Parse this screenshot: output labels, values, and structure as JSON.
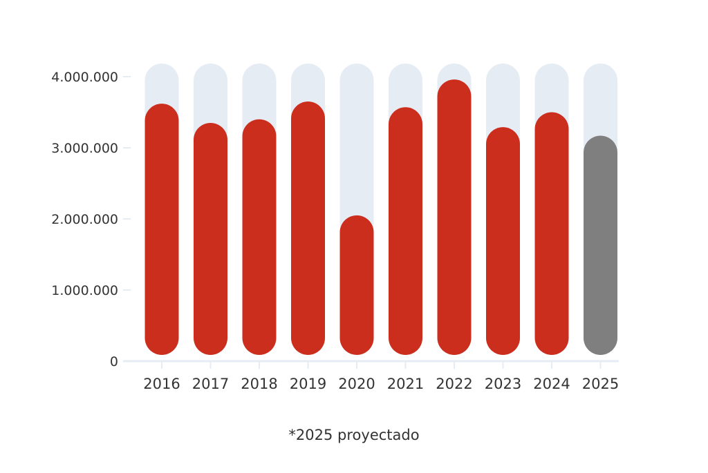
{
  "chart_data": {
    "type": "bar",
    "title": "",
    "xlabel": "",
    "ylabel": "",
    "categories": [
      "2016",
      "2017",
      "2018",
      "2019",
      "2020",
      "2021",
      "2022",
      "2023",
      "2024",
      "2025"
    ],
    "values": [
      3620000,
      3350000,
      3400000,
      3650000,
      2050000,
      3570000,
      3960000,
      3290000,
      3500000,
      3170000
    ],
    "projected": [
      false,
      false,
      false,
      false,
      false,
      false,
      false,
      false,
      false,
      true
    ],
    "ylim": [
      0,
      4000000
    ],
    "yticks": [
      {
        "value": 0,
        "label": "0"
      },
      {
        "value": 1000000,
        "label": "1.000.000"
      },
      {
        "value": 2000000,
        "label": "2.000.000"
      },
      {
        "value": 3000000,
        "label": "3.000.000"
      },
      {
        "value": 4000000,
        "label": "4.000.000"
      }
    ],
    "grid": false,
    "colors": {
      "bar": "#cc2e1e",
      "projected_bar": "#7f7f7f",
      "track": "#e6ecf4",
      "axis": "#e6ecf4",
      "text": "#333333"
    }
  },
  "footnote": "*2025 proyectado"
}
